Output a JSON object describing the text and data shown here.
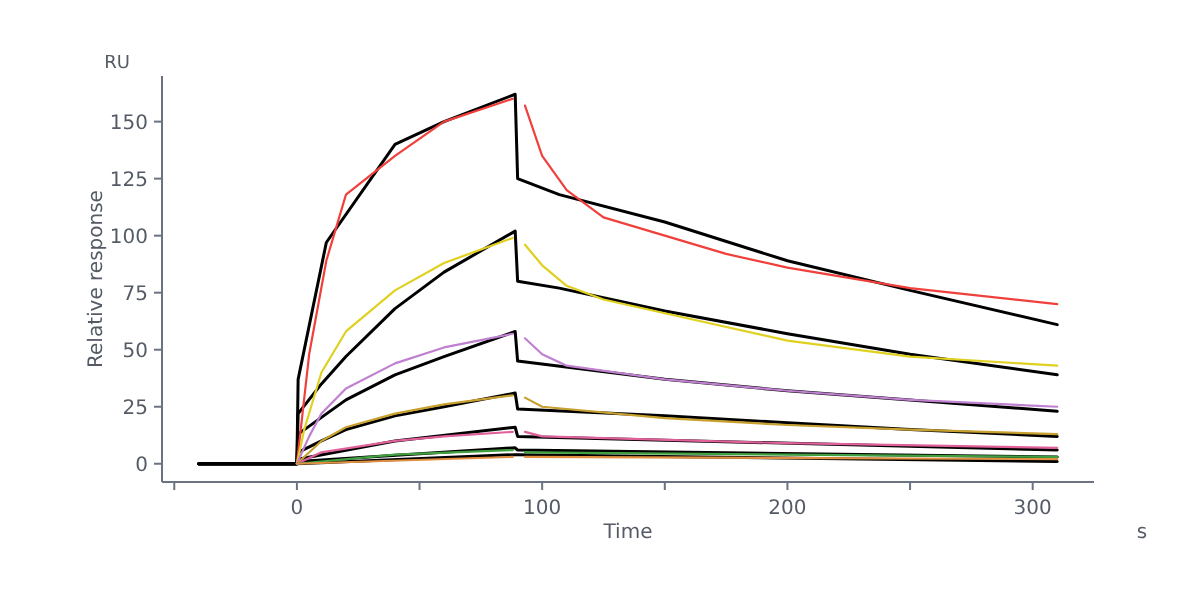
{
  "chart_data": {
    "type": "line",
    "xlabel": "Time",
    "ylabel": "Relative response",
    "annotations": [
      "RU",
      "s"
    ],
    "xlim": [
      -55,
      325
    ],
    "ylim": [
      -8,
      170
    ],
    "xticks": [
      {
        "value": -50,
        "label": null
      },
      0,
      {
        "value": 50,
        "label": null
      },
      100,
      {
        "value": 150,
        "label": null
      },
      200,
      {
        "value": 250,
        "label": null
      },
      300
    ],
    "yticks": [
      0,
      25,
      50,
      75,
      100,
      125,
      150
    ],
    "grid": false,
    "marker": "none",
    "line_style": "solid",
    "series": [
      {
        "color": "#000000",
        "x": [
          -40,
          0,
          0.5,
          12,
          40,
          60,
          89,
          90,
          107,
          150,
          200,
          250,
          310
        ],
        "values": [
          0,
          0,
          37,
          97,
          140,
          150,
          162,
          125,
          118,
          106,
          89,
          76,
          61
        ]
      },
      {
        "color": "#000000",
        "x": [
          -40,
          0,
          0.5,
          10,
          20,
          40,
          60,
          89,
          90,
          107,
          150,
          200,
          250,
          310
        ],
        "values": [
          0,
          0,
          22,
          35,
          47,
          68,
          84,
          102,
          80,
          77,
          67,
          57,
          48,
          39
        ]
      },
      {
        "color": "#000000",
        "x": [
          -40,
          0,
          0.5,
          20,
          40,
          60,
          89,
          90,
          150,
          200,
          250,
          310
        ],
        "values": [
          0,
          0,
          13,
          28,
          39,
          47,
          58,
          45,
          37,
          32,
          28,
          23
        ]
      },
      {
        "color": "#000000",
        "x": [
          -40,
          0,
          0.5,
          10,
          20,
          40,
          60,
          89,
          90,
          150,
          200,
          250,
          310
        ],
        "values": [
          0,
          0,
          5,
          10,
          15,
          21,
          25,
          31,
          24,
          21,
          18,
          15,
          12
        ]
      },
      {
        "color": "#000000",
        "x": [
          -40,
          0,
          0.5,
          40,
          89,
          90,
          310
        ],
        "values": [
          0,
          0,
          2,
          10,
          16,
          12,
          6
        ]
      },
      {
        "color": "#000000",
        "x": [
          -40,
          0,
          0.5,
          89,
          90,
          310
        ],
        "values": [
          0,
          0,
          1,
          7,
          6,
          3
        ]
      },
      {
        "color": "#000000",
        "x": [
          -40,
          0,
          89,
          90,
          310
        ],
        "values": [
          0,
          0,
          4,
          4,
          1
        ]
      },
      {
        "color": "#f0403c",
        "x": [
          0,
          5,
          12,
          20,
          40,
          60,
          88,
          90.5,
          93,
          100,
          110,
          125,
          150,
          175,
          200,
          250,
          310
        ],
        "values": [
          0,
          48,
          89,
          118,
          135,
          150,
          160,
          null,
          157,
          135,
          120,
          108,
          100,
          92,
          86,
          77,
          70
        ]
      },
      {
        "color": "#e0d020",
        "x": [
          0,
          3,
          10,
          20,
          40,
          60,
          88,
          90.5,
          93,
          100,
          110,
          125,
          150,
          200,
          250,
          310
        ],
        "values": [
          0,
          15,
          40,
          58,
          76,
          88,
          99,
          null,
          96,
          87,
          78,
          72,
          66,
          54,
          47,
          43
        ]
      },
      {
        "color": "#c080d0",
        "x": [
          0,
          5,
          10,
          20,
          40,
          60,
          88,
          90.5,
          93,
          100,
          110,
          150,
          200,
          250,
          310
        ],
        "values": [
          0,
          12,
          22,
          33,
          44,
          51,
          57,
          null,
          55,
          48,
          43,
          37,
          32,
          28,
          25
        ]
      },
      {
        "color": "#c8a030",
        "x": [
          0,
          10,
          20,
          40,
          60,
          88,
          90.5,
          93,
          100,
          150,
          200,
          250,
          310
        ],
        "values": [
          0,
          10,
          16,
          22,
          26,
          30,
          null,
          29,
          25,
          20,
          17,
          15,
          13
        ]
      },
      {
        "color": "#e0609a",
        "x": [
          0,
          10,
          40,
          60,
          88,
          90.5,
          93,
          100,
          200,
          310
        ],
        "values": [
          0,
          5,
          10,
          12,
          14,
          null,
          14,
          12,
          9,
          7
        ]
      },
      {
        "color": "#40a040",
        "x": [
          0,
          40,
          88,
          90.5,
          93,
          200,
          310
        ],
        "values": [
          0,
          4,
          6,
          null,
          5,
          4,
          3
        ]
      },
      {
        "color": "#e09040",
        "x": [
          0,
          88,
          90.5,
          93,
          310
        ],
        "values": [
          0,
          3,
          null,
          3,
          2
        ]
      }
    ]
  }
}
